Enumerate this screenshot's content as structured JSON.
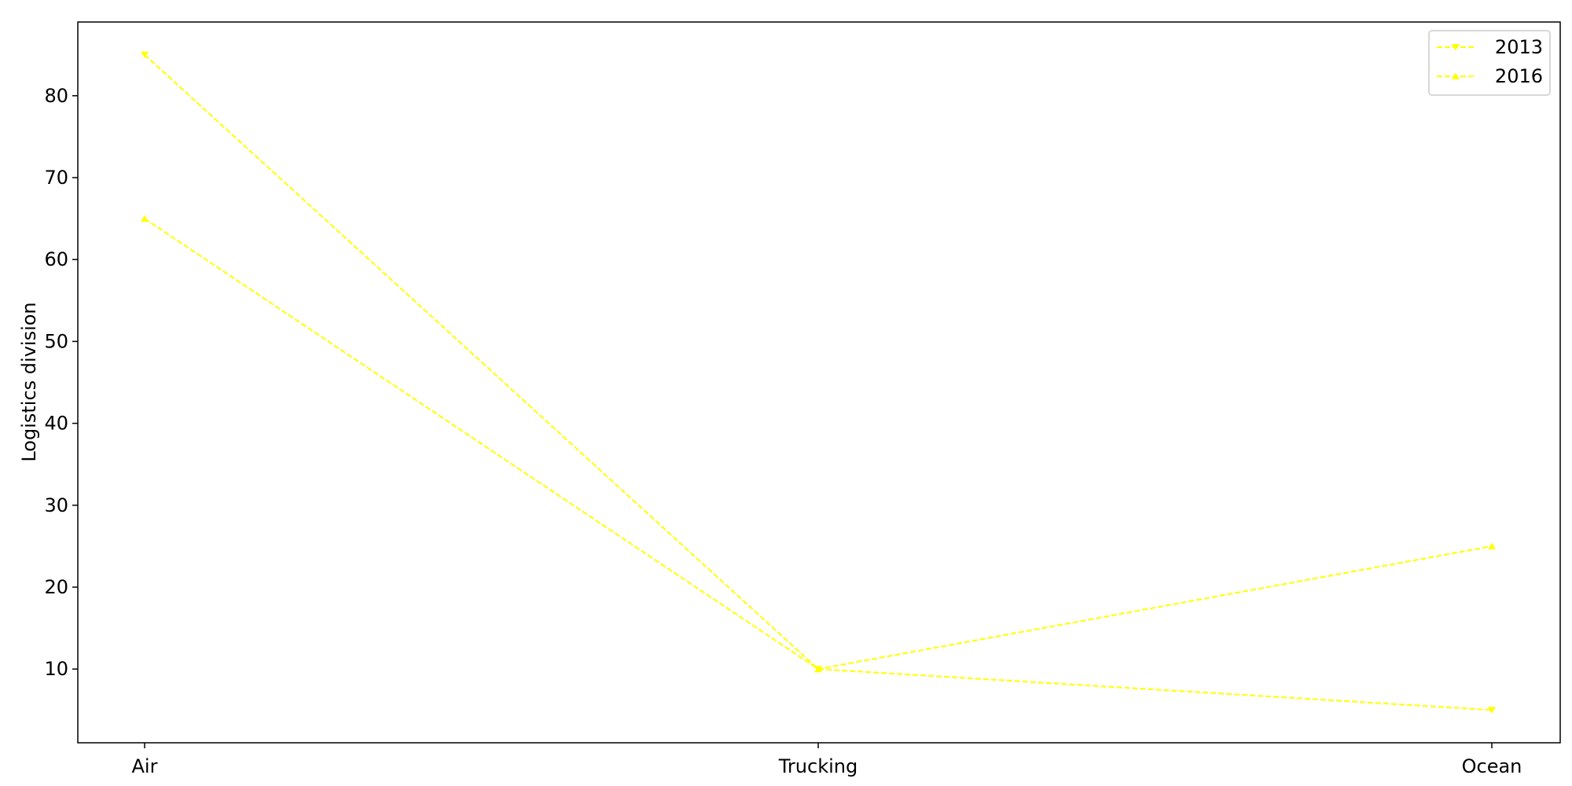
{
  "chart_data": {
    "type": "line",
    "title": "",
    "xlabel": "",
    "ylabel": "Logistics division",
    "categories": [
      "Air",
      "Trucking",
      "Ocean"
    ],
    "series": [
      {
        "name": "2013",
        "values": [
          85,
          10,
          5
        ],
        "color": "#ffff00",
        "marker": "triangle-down",
        "line_style": "dashed"
      },
      {
        "name": "2016",
        "values": [
          65,
          10,
          25
        ],
        "color": "#ffff00",
        "marker": "triangle-up",
        "line_style": "dashed"
      }
    ],
    "ylim": [
      1,
      89
    ],
    "y_ticks": [
      10,
      20,
      30,
      40,
      50,
      60,
      70,
      80
    ],
    "grid": false,
    "legend_position": "top-right"
  }
}
